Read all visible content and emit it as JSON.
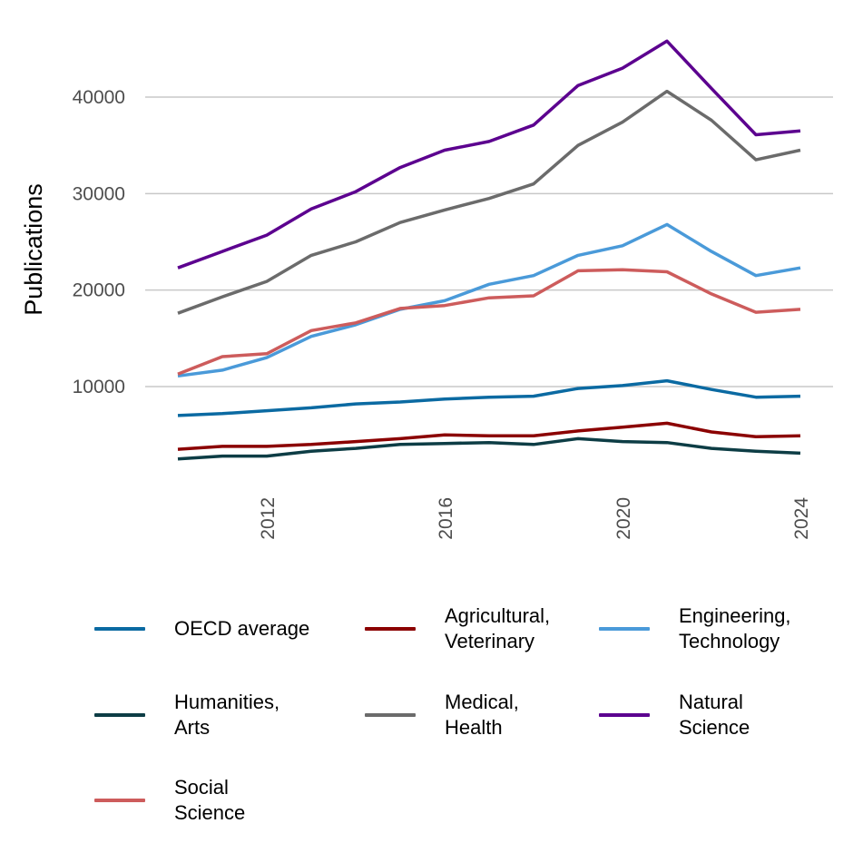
{
  "chart_data": {
    "type": "line",
    "title": "",
    "xlabel": "",
    "ylabel": "Publications",
    "x": [
      2010,
      2011,
      2012,
      2013,
      2014,
      2015,
      2016,
      2017,
      2018,
      2019,
      2020,
      2021,
      2022,
      2023,
      2024
    ],
    "xticks": [
      "2012",
      "2016",
      "2020",
      "2024"
    ],
    "yticks": [
      "10000",
      "20000",
      "30000",
      "40000"
    ],
    "ylim": [
      0,
      47500
    ],
    "xlim": [
      2010,
      2024
    ],
    "grid": "horizontal",
    "legend_position": "bottom",
    "series": [
      {
        "name": "OECD average",
        "color": "#0b6aa2",
        "values": [
          7000,
          7200,
          7500,
          7800,
          8200,
          8400,
          8700,
          8900,
          9000,
          9800,
          10100,
          10600,
          9700,
          8900,
          9000
        ]
      },
      {
        "name": "Agricultural,\nVeterinary",
        "color": "#8b0000",
        "values": [
          3500,
          3800,
          3800,
          4000,
          4300,
          4600,
          5000,
          4900,
          4900,
          5400,
          5800,
          6200,
          5300,
          4800,
          4900
        ]
      },
      {
        "name": "Engineering,\nTechnology",
        "color": "#4a9ad9",
        "values": [
          11100,
          11700,
          13000,
          15200,
          16400,
          18000,
          18900,
          20600,
          21500,
          23600,
          24600,
          26800,
          24000,
          21500,
          22300
        ]
      },
      {
        "name": "Humanities,\nArts",
        "color": "#0d3d45",
        "values": [
          2500,
          2800,
          2800,
          3300,
          3600,
          4000,
          4100,
          4200,
          4000,
          4600,
          4300,
          4200,
          3600,
          3300,
          3100
        ]
      },
      {
        "name": "Medical,\nHealth",
        "color": "#6b6b6b",
        "values": [
          17600,
          19300,
          20900,
          23600,
          25000,
          27000,
          28300,
          29500,
          31000,
          35000,
          37400,
          40600,
          37600,
          33500,
          34500
        ]
      },
      {
        "name": "Natural\nScience",
        "color": "#5c008f",
        "values": [
          22300,
          24000,
          25700,
          28400,
          30200,
          32700,
          34500,
          35400,
          37100,
          41200,
          43000,
          45800,
          40900,
          36100,
          36500
        ]
      },
      {
        "name": "Social\nScience",
        "color": "#cd5c5c",
        "values": [
          11300,
          13100,
          13400,
          15800,
          16600,
          18100,
          18400,
          19200,
          19400,
          22000,
          22100,
          21900,
          19600,
          17700,
          18000
        ]
      }
    ]
  }
}
